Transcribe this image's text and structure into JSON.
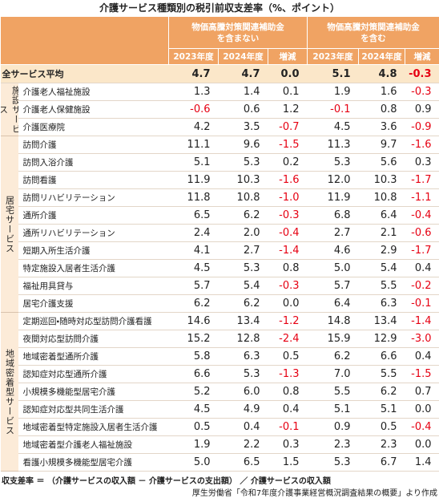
{
  "title": "介護サービス種類別の税引前収支差率（%、ポイント）",
  "header": {
    "groups": [
      {
        "label": [
          "物価高騰対策関連補助金",
          "を含まない"
        ],
        "columns": [
          "2023年度",
          "2024年度",
          "増減"
        ]
      },
      {
        "label": [
          "物価高騰対策関連補助金",
          "を含む"
        ],
        "columns": [
          "2023年度",
          "2024年度",
          "増減"
        ]
      }
    ]
  },
  "total": {
    "name": "全サービス平均",
    "values": [
      "4.7",
      "4.7",
      "0.0",
      "5.1",
      "4.8",
      "-0.3"
    ]
  },
  "sections": [
    {
      "label": "施設サービス",
      "rows": [
        {
          "name": "介護老人福祉施設",
          "values": [
            "1.3",
            "1.4",
            "0.1",
            "1.9",
            "1.6",
            "-0.3"
          ]
        },
        {
          "name": "介護老人保健施設",
          "values": [
            "-0.6",
            "0.6",
            "1.2",
            "-0.1",
            "0.8",
            "0.9"
          ]
        },
        {
          "name": "介護医療院",
          "values": [
            "4.2",
            "3.5",
            "-0.7",
            "4.5",
            "3.6",
            "-0.9"
          ]
        }
      ]
    },
    {
      "label": "居宅サービス",
      "rows": [
        {
          "name": "訪問介護",
          "values": [
            "11.1",
            "9.6",
            "-1.5",
            "11.3",
            "9.7",
            "-1.6"
          ]
        },
        {
          "name": "訪問入浴介護",
          "values": [
            "5.1",
            "5.3",
            "0.2",
            "5.3",
            "5.6",
            "0.3"
          ]
        },
        {
          "name": "訪問看護",
          "values": [
            "11.9",
            "10.3",
            "-1.6",
            "12.0",
            "10.3",
            "-1.7"
          ]
        },
        {
          "name": "訪問リハビリテーション",
          "values": [
            "11.8",
            "10.8",
            "-1.0",
            "11.9",
            "10.8",
            "-1.1"
          ]
        },
        {
          "name": "通所介護",
          "values": [
            "6.5",
            "6.2",
            "-0.3",
            "6.8",
            "6.4",
            "-0.4"
          ]
        },
        {
          "name": "通所リハビリテーション",
          "values": [
            "2.4",
            "2.0",
            "-0.4",
            "2.7",
            "2.1",
            "-0.6"
          ]
        },
        {
          "name": "短期入所生活介護",
          "values": [
            "4.1",
            "2.7",
            "-1.4",
            "4.6",
            "2.9",
            "-1.7"
          ]
        },
        {
          "name": "特定施設入居者生活介護",
          "values": [
            "4.5",
            "5.3",
            "0.8",
            "5.0",
            "5.4",
            "0.4"
          ]
        },
        {
          "name": "福祉用具貸与",
          "values": [
            "5.7",
            "5.4",
            "-0.3",
            "5.7",
            "5.5",
            "-0.2"
          ]
        },
        {
          "name": "居宅介護支援",
          "values": [
            "6.2",
            "6.2",
            "0.0",
            "6.4",
            "6.3",
            "-0.1"
          ]
        }
      ]
    },
    {
      "label": "地域密着型サービス",
      "rows": [
        {
          "name": "定期巡回・随時対応型訪問介護看護",
          "values": [
            "14.6",
            "13.4",
            "-1.2",
            "14.8",
            "13.4",
            "-1.4"
          ]
        },
        {
          "name": "夜間対応型訪問介護",
          "values": [
            "15.2",
            "12.8",
            "-2.4",
            "15.9",
            "12.9",
            "-3.0"
          ]
        },
        {
          "name": "地域密着型通所介護",
          "values": [
            "5.8",
            "6.3",
            "0.5",
            "6.2",
            "6.6",
            "0.4"
          ]
        },
        {
          "name": "認知症対応型通所介護",
          "values": [
            "6.6",
            "5.3",
            "-1.3",
            "7.0",
            "5.5",
            "-1.5"
          ]
        },
        {
          "name": "小規模多機能型居宅介護",
          "values": [
            "5.2",
            "6.0",
            "0.8",
            "5.5",
            "6.2",
            "0.7"
          ]
        },
        {
          "name": "認知症対応型共同生活介護",
          "values": [
            "4.5",
            "4.9",
            "0.4",
            "5.1",
            "5.1",
            "0.0"
          ]
        },
        {
          "name": "地域密着型特定施設入居者生活介護",
          "values": [
            "0.5",
            "0.4",
            "-0.1",
            "0.9",
            "0.5",
            "-0.4"
          ]
        },
        {
          "name": "地域密着型介護老人福祉施設",
          "values": [
            "1.9",
            "2.2",
            "0.3",
            "2.3",
            "2.3",
            "0.0"
          ]
        },
        {
          "name": "看護小規模多機能型居宅介護",
          "values": [
            "5.0",
            "6.5",
            "1.5",
            "5.3",
            "6.7",
            "1.4"
          ]
        }
      ]
    }
  ],
  "footer": {
    "formula": "収支差率 ＝ （介護サービスの収入額 － 介護サービスの支出額） ／ 介護サービスの収入額",
    "source": "厚生労働省「令和7年度介護事業経営概況調査結果の概要」より作成"
  }
}
